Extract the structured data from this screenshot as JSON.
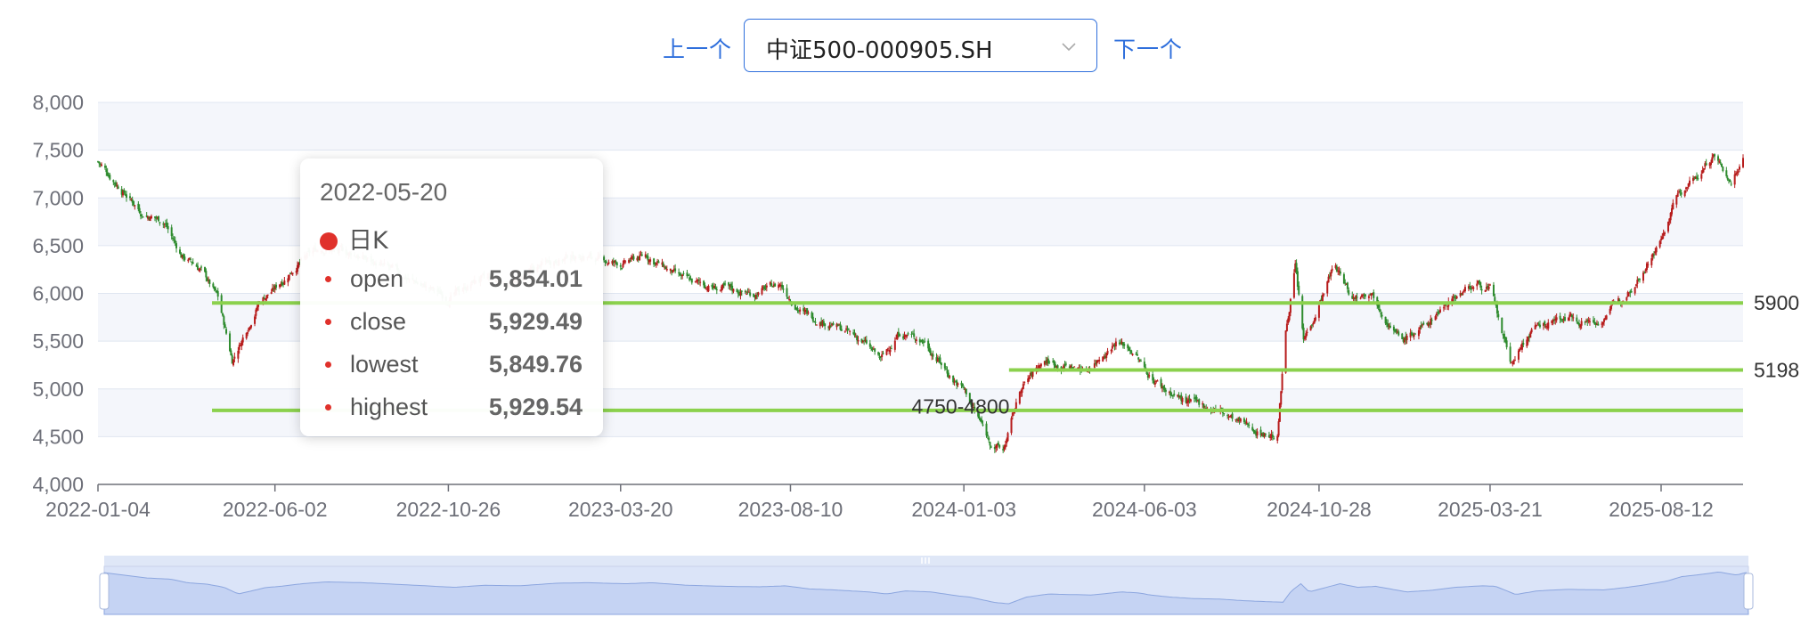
{
  "header": {
    "prev_label": "上一个",
    "next_label": "下一个",
    "selected_symbol": "中证500-000905.SH"
  },
  "tooltip": {
    "date": "2022-05-20",
    "series_name": "日K",
    "rows": [
      {
        "label": "open",
        "value": "5,854.01"
      },
      {
        "label": "close",
        "value": "5,929.49"
      },
      {
        "label": "lowest",
        "value": "5,849.76"
      },
      {
        "label": "highest",
        "value": "5,929.54"
      }
    ]
  },
  "colors": {
    "accent": "#2f6fdc",
    "up": "#b71c1c",
    "down": "#2e8b2e",
    "line": "#8bd14d",
    "grid": "#e0e6f1",
    "band": "#f4f6fb"
  },
  "chart_data": {
    "type": "candlestick",
    "x_range": [
      "2022-01-04",
      "2025-10-20"
    ],
    "ylim": [
      4000,
      8000
    ],
    "y_ticks": [
      "4,000",
      "4,500",
      "5,000",
      "5,500",
      "6,000",
      "6,500",
      "7,000",
      "7,500",
      "8,000"
    ],
    "x_ticks": [
      "2022-01-04",
      "2022-06-02",
      "2022-10-26",
      "2023-03-20",
      "2023-08-10",
      "2024-01-03",
      "2024-06-03",
      "2024-10-28",
      "2025-03-21",
      "2025-08-12"
    ],
    "close_series": [
      [
        "2022-01-04",
        7380
      ],
      [
        "2022-01-20",
        7150
      ],
      [
        "2022-02-10",
        6850
      ],
      [
        "2022-03-01",
        6750
      ],
      [
        "2022-03-15",
        6400
      ],
      [
        "2022-04-01",
        6250
      ],
      [
        "2022-04-15",
        5950
      ],
      [
        "2022-04-27",
        5300
      ],
      [
        "2022-05-10",
        5650
      ],
      [
        "2022-05-20",
        5929
      ],
      [
        "2022-06-02",
        6050
      ],
      [
        "2022-06-20",
        6300
      ],
      [
        "2022-07-10",
        6480
      ],
      [
        "2022-08-10",
        6400
      ],
      [
        "2022-09-15",
        6200
      ],
      [
        "2022-10-26",
        5950
      ],
      [
        "2022-11-20",
        6150
      ],
      [
        "2022-12-20",
        6100
      ],
      [
        "2023-01-20",
        6350
      ],
      [
        "2023-02-15",
        6400
      ],
      [
        "2023-03-20",
        6300
      ],
      [
        "2023-04-10",
        6400
      ],
      [
        "2023-05-10",
        6150
      ],
      [
        "2023-06-10",
        6050
      ],
      [
        "2023-07-10",
        6000
      ],
      [
        "2023-08-01",
        6100
      ],
      [
        "2023-08-20",
        5800
      ],
      [
        "2023-09-10",
        5700
      ],
      [
        "2023-10-10",
        5500
      ],
      [
        "2023-10-25",
        5300
      ],
      [
        "2023-11-10",
        5600
      ],
      [
        "2023-12-01",
        5500
      ],
      [
        "2023-12-25",
        5100
      ],
      [
        "2024-01-03",
        5000
      ],
      [
        "2024-01-25",
        4450
      ],
      [
        "2024-02-05",
        4350
      ],
      [
        "2024-02-20",
        5000
      ],
      [
        "2024-03-10",
        5300
      ],
      [
        "2024-03-25",
        5250
      ],
      [
        "2024-04-15",
        5200
      ],
      [
        "2024-05-10",
        5500
      ],
      [
        "2024-05-25",
        5400
      ],
      [
        "2024-06-03",
        5200
      ],
      [
        "2024-06-20",
        5000
      ],
      [
        "2024-07-10",
        4850
      ],
      [
        "2024-08-01",
        4800
      ],
      [
        "2024-08-20",
        4650
      ],
      [
        "2024-09-10",
        4550
      ],
      [
        "2024-09-23",
        4500
      ],
      [
        "2024-09-30",
        5600
      ],
      [
        "2024-10-08",
        6300
      ],
      [
        "2024-10-15",
        5500
      ],
      [
        "2024-10-28",
        5900
      ],
      [
        "2024-11-10",
        6300
      ],
      [
        "2024-11-25",
        5950
      ],
      [
        "2024-12-10",
        6050
      ],
      [
        "2025-01-05",
        5500
      ],
      [
        "2025-01-25",
        5650
      ],
      [
        "2025-02-15",
        5950
      ],
      [
        "2025-03-10",
        6100
      ],
      [
        "2025-03-21",
        6050
      ],
      [
        "2025-04-07",
        5250
      ],
      [
        "2025-04-25",
        5600
      ],
      [
        "2025-05-20",
        5750
      ],
      [
        "2025-06-20",
        5700
      ],
      [
        "2025-07-10",
        5950
      ],
      [
        "2025-07-25",
        6200
      ],
      [
        "2025-08-12",
        6550
      ],
      [
        "2025-08-25",
        7000
      ],
      [
        "2025-09-10",
        7200
      ],
      [
        "2025-09-25",
        7450
      ],
      [
        "2025-10-10",
        7150
      ],
      [
        "2025-10-20",
        7450
      ]
    ],
    "horizontal_lines": [
      {
        "value": 5900,
        "label": "5900",
        "from": "2022-04-10",
        "to": "2025-10-20"
      },
      {
        "value": 5198,
        "label": "5198",
        "from": "2024-02-10",
        "to": "2025-10-20"
      },
      {
        "value": 4775,
        "label": "",
        "from": "2022-04-10",
        "to": "2025-10-20"
      }
    ],
    "annotations": [
      {
        "text": "4750-4800",
        "date": "2023-11-20",
        "value": 4790
      }
    ]
  }
}
